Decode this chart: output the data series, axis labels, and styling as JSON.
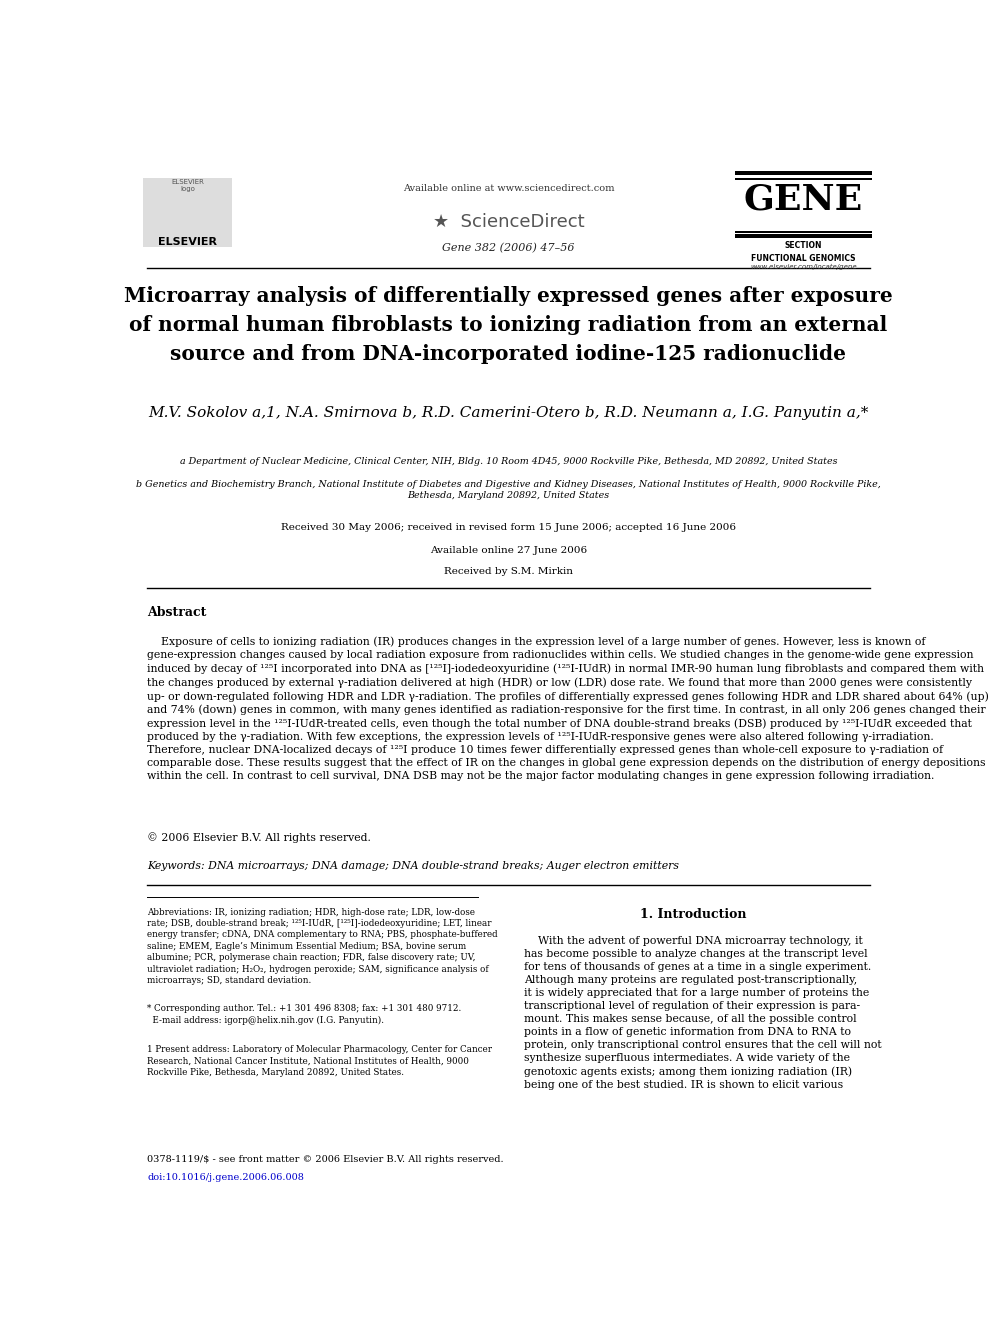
{
  "bg_color": "#ffffff",
  "header_available": "Available online at www.sciencedirect.com",
  "header_sciencedirect": "ScienceDirect",
  "header_journal": "Gene 382 (2006) 47–56",
  "gene_logo_text": "GENE",
  "gene_section": "SECTION\nFUNCTIONAL GENOMICS",
  "gene_website": "www.elsevier.com/locate/gene",
  "elsevier_text": "ELSEVIER",
  "title_line1": "Microarray analysis of differentially expressed genes after exposure",
  "title_line2": "of normal human fibroblasts to ionizing radiation from an external",
  "title_line3": "source and from DNA-incorporated iodine-125 radionuclide",
  "authors_clean": "M.V. Sokolov a,1, N.A. Smirnova b, R.D. Camerini-Otero b, R.D. Neumann a, I.G. Panyutin a,*",
  "affil_a": "a Department of Nuclear Medicine, Clinical Center, NIH, Bldg. 10 Room 4D45, 9000 Rockville Pike, Bethesda, MD 20892, United States",
  "affil_b": "b Genetics and Biochemistry Branch, National Institute of Diabetes and Digestive and Kidney Diseases, National Institutes of Health, 9000 Rockville Pike,\nBethesda, Maryland 20892, United States",
  "received": "Received 30 May 2006; received in revised form 15 June 2006; accepted 16 June 2006",
  "available_online": "Available online 27 June 2006",
  "received_by": "Received by S.M. Mirkin",
  "abstract_title": "Abstract",
  "keywords": "Keywords: DNA microarrays; DNA damage; DNA double-strand breaks; Auger electron emitters",
  "section_intro": "1. Introduction",
  "footer_line1": "0378-1119/$ - see front matter © 2006 Elsevier B.V. All rights reserved.",
  "footer_line2": "doi:10.1016/j.gene.2006.06.008"
}
